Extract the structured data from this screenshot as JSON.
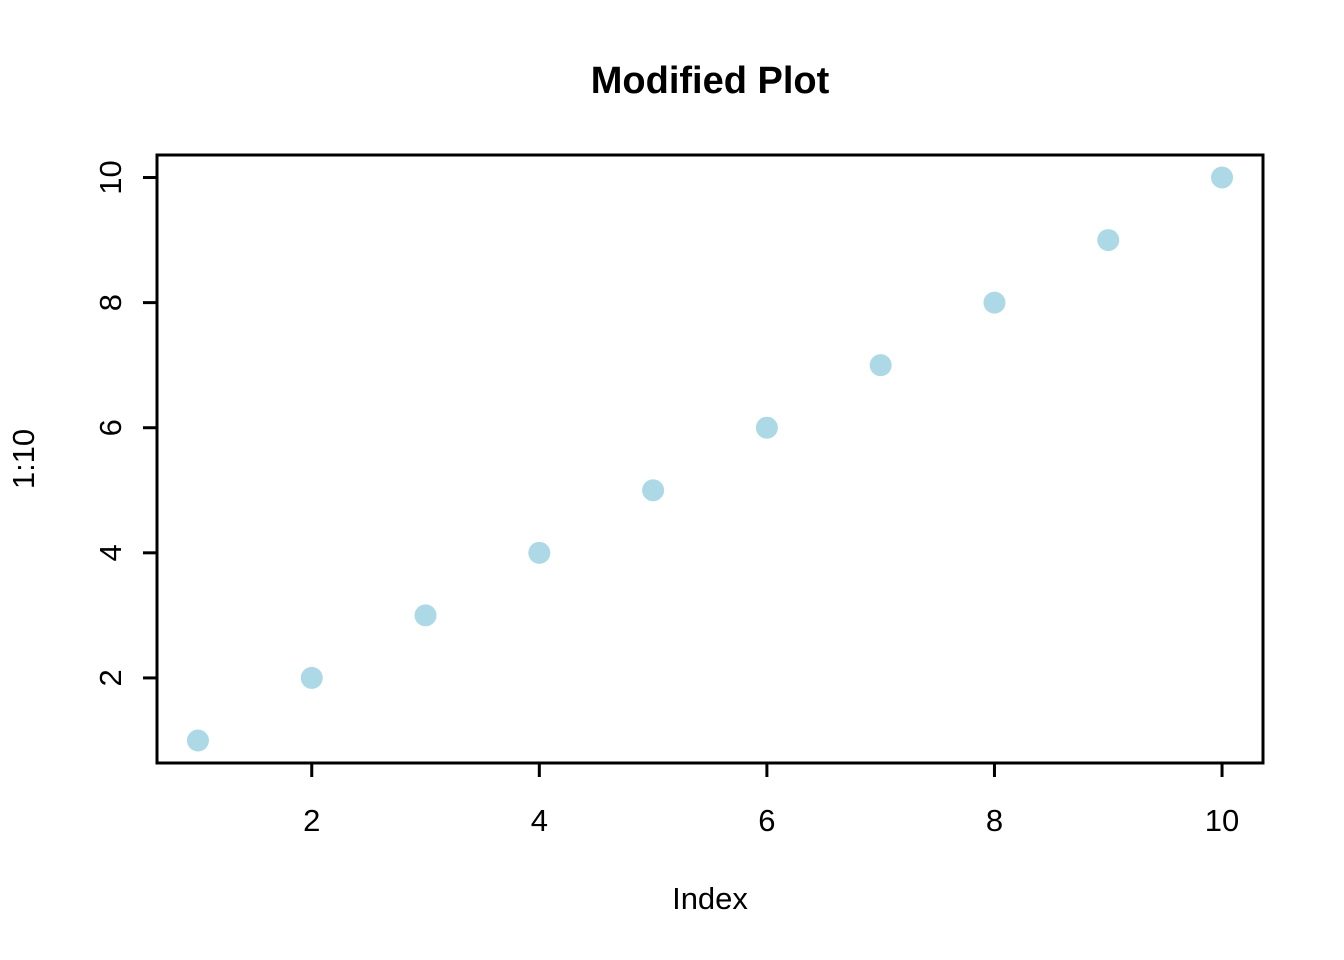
{
  "chart_data": {
    "type": "scatter",
    "title": "Modified Plot",
    "xlabel": "Index",
    "ylabel": "1:10",
    "x": [
      1,
      2,
      3,
      4,
      5,
      6,
      7,
      8,
      9,
      10
    ],
    "y": [
      1,
      2,
      3,
      4,
      5,
      6,
      7,
      8,
      9,
      10
    ],
    "xticks": [
      2,
      4,
      6,
      8,
      10
    ],
    "yticks": [
      2,
      4,
      6,
      8,
      10
    ],
    "xlim": [
      0.64,
      10.36
    ],
    "ylim": [
      0.64,
      10.36
    ],
    "point_color": "#ADD8E6",
    "axis_color": "#000000",
    "background_color": "#FFFFFF",
    "legend": "none",
    "grid": false
  }
}
